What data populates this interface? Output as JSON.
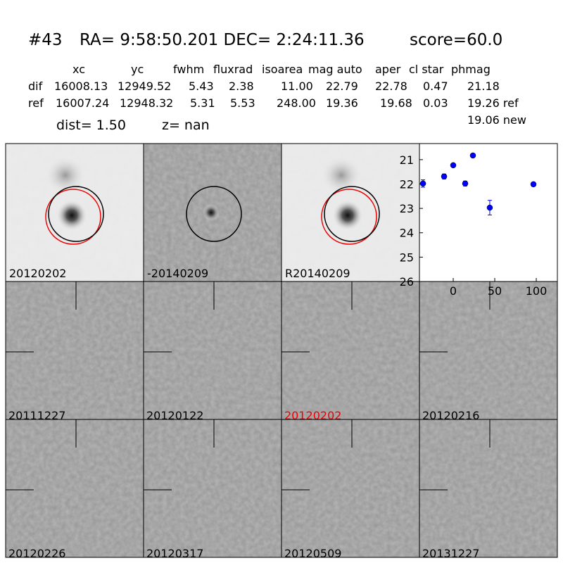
{
  "header": {
    "id": "#43",
    "coords": "RA= 9:58:50.201 DEC= 2:24:11.36",
    "score": "score=60.0"
  },
  "table": {
    "columns": [
      "xc",
      "yc",
      "fwhm",
      "fluxrad",
      "isoarea",
      "mag auto",
      "aper",
      "cl star",
      "phmag"
    ],
    "rows": [
      [
        "dif",
        "16008.13",
        "12949.52",
        "5.43",
        "2.38",
        "11.00",
        "22.79",
        "22.78",
        "0.47",
        "21.18"
      ],
      [
        "ref",
        "16007.24",
        "12948.32",
        "5.31",
        "5.53",
        "248.00",
        "19.36",
        "19.68",
        "0.03",
        "19.26 ref"
      ]
    ],
    "extra": "19.06 new"
  },
  "dist": {
    "dist": "dist=  1.50",
    "z": "z=   nan"
  },
  "stamps": [
    "20120202",
    "-20140209",
    "R20140209"
  ],
  "epochs": [
    "20111227",
    "20120122",
    "20120202",
    "20120216",
    "20120226",
    "20120317",
    "20120509",
    "20131227"
  ],
  "chart_data": {
    "type": "errorbar",
    "color": "#0000ff",
    "x": [
      -36.4,
      -11,
      0,
      14.4,
      23.7,
      44,
      96.6
    ],
    "values": [
      21.98,
      21.69,
      21.23,
      21.98,
      20.83,
      22.97,
      22.01
    ],
    "errors": [
      0.15,
      0.1,
      0.07,
      0.1,
      0.05,
      0.3,
      0.08
    ],
    "xlim": [
      -40.7,
      125.4
    ],
    "ylim": [
      26,
      20.34
    ],
    "xticks": [
      0,
      50,
      100
    ],
    "yticks": [
      21,
      22,
      23,
      24,
      25,
      26
    ]
  }
}
